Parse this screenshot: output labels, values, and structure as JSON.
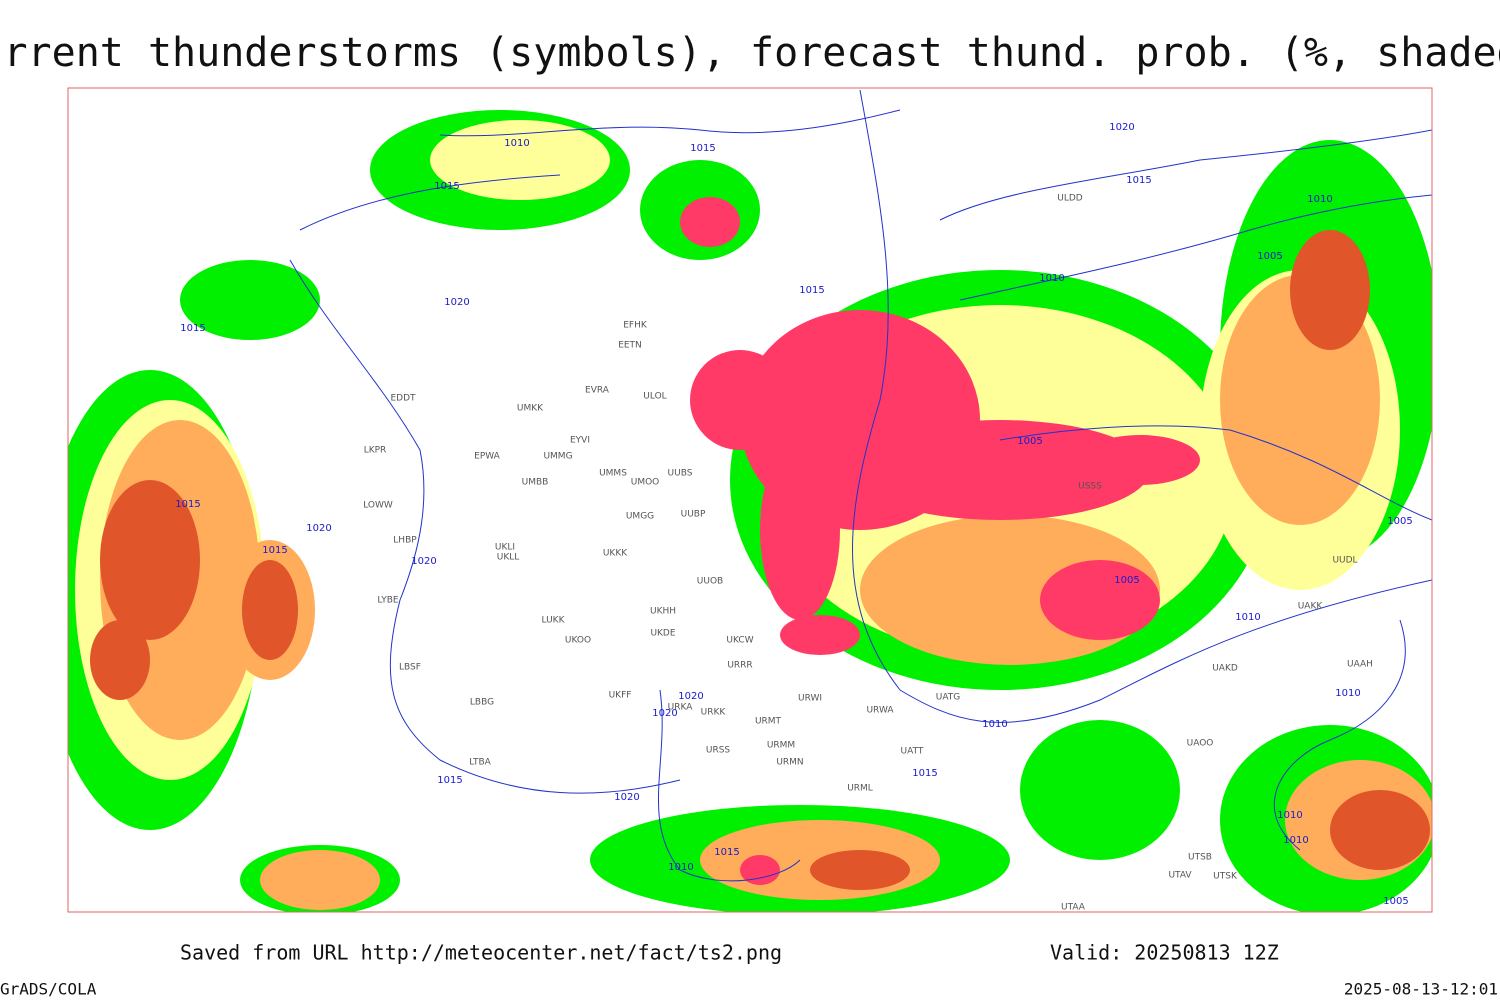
{
  "title": "Current thunderstorms (symbols), forecast thund. prob. (%, shaded)",
  "footer": {
    "source": "Saved from URL http://meteocenter.net/fact/ts2.png",
    "valid": "Valid: 20250813 12Z",
    "software": "GrADS/COLA",
    "timestamp": "2025-08-13-12:01"
  },
  "stations": [
    "EFHK",
    "EETN",
    "EVRA",
    "ULOL",
    "UMKK",
    "EYVI",
    "UMMG",
    "EPWA",
    "EDDT",
    "LKPR",
    "UMMS",
    "UMOO",
    "UUBS",
    "UMBB",
    "LOWW",
    "LHBP",
    "UKLL",
    "UKLI",
    "UMGG",
    "UUBP",
    "UKKK",
    "UUOB",
    "LYBE",
    "UKHH",
    "LUKK",
    "UKOO",
    "UKDE",
    "UKCW",
    "URRR",
    "LBSF",
    "UKFF",
    "LBBG",
    "URKA",
    "URKK",
    "URMT",
    "URSS",
    "URMM",
    "URMN",
    "LTBA",
    "URML",
    "URWA",
    "URWI",
    "UATG",
    "UATT",
    "UAOO",
    "UTAA",
    "UTSB",
    "UTAV",
    "UTSK",
    "UAKK",
    "UAKD",
    "UAAH",
    "ULDD",
    "USSS",
    "UUDL"
  ],
  "isobars": [
    "1010",
    "1015",
    "1015",
    "1020",
    "1015",
    "1015",
    "1020",
    "1015",
    "1020",
    "1015",
    "1020",
    "1015",
    "1010",
    "1010",
    "1005",
    "1005",
    "1005",
    "1005",
    "1010",
    "1010",
    "1010",
    "1020",
    "1020",
    "1015",
    "1020",
    "1010",
    "1015",
    "1015",
    "1010",
    "1010",
    "1005"
  ]
}
